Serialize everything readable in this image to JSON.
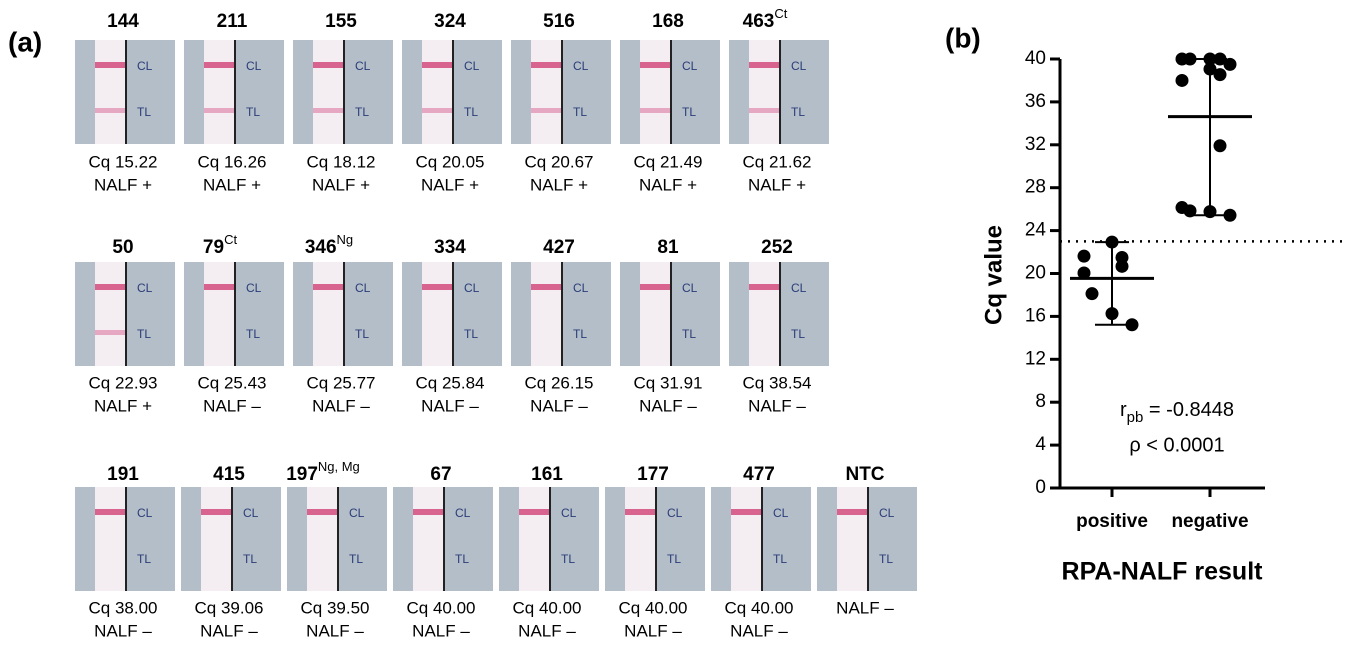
{
  "panel_a": {
    "label": "(a)",
    "control_label": "CL",
    "test_label": "TL",
    "rows": [
      [
        {
          "id": "144",
          "cq": "Cq 15.22",
          "result": "NALF +"
        },
        {
          "id": "211",
          "cq": "Cq 16.26",
          "result": "NALF +"
        },
        {
          "id": "155",
          "cq": "Cq 18.12",
          "result": "NALF +"
        },
        {
          "id": "324",
          "cq": "Cq 20.05",
          "result": "NALF +"
        },
        {
          "id": "516",
          "cq": "Cq 20.67",
          "result": "NALF +"
        },
        {
          "id": "168",
          "cq": "Cq 21.49",
          "result": "NALF +"
        },
        {
          "id": "463",
          "sup": "Ct",
          "cq": "Cq 21.62",
          "result": "NALF +"
        }
      ],
      [
        {
          "id": "50",
          "cq": "Cq 22.93",
          "result": "NALF +"
        },
        {
          "id": "79",
          "sup": "Ct",
          "cq": "Cq 25.43",
          "result": "NALF –"
        },
        {
          "id": "346",
          "sup": "Ng",
          "cq": "Cq 25.77",
          "result": "NALF –"
        },
        {
          "id": "334",
          "cq": "Cq 25.84",
          "result": "NALF –"
        },
        {
          "id": "427",
          "cq": "Cq 26.15",
          "result": "NALF –"
        },
        {
          "id": "81",
          "cq": "Cq 31.91",
          "result": "NALF –"
        },
        {
          "id": "252",
          "cq": "Cq 38.54",
          "result": "NALF –"
        }
      ],
      [
        {
          "id": "191",
          "cq": "Cq 38.00",
          "result": "NALF –"
        },
        {
          "id": "415",
          "cq": "Cq 39.06",
          "result": "NALF –"
        },
        {
          "id": "197",
          "sup": "Ng, Mg",
          "cq": "Cq 39.50",
          "result": "NALF –"
        },
        {
          "id": "67",
          "cq": "Cq 40.00",
          "result": "NALF –"
        },
        {
          "id": "161",
          "cq": "Cq 40.00",
          "result": "NALF –"
        },
        {
          "id": "177",
          "cq": "Cq 40.00",
          "result": "NALF –"
        },
        {
          "id": "477",
          "cq": "Cq 40.00",
          "result": "NALF –"
        },
        {
          "id": "NTC",
          "result": "NALF –"
        }
      ]
    ]
  },
  "chart_data": {
    "type": "dot",
    "label": "(b)",
    "y_label": "Cq value",
    "x_label": "RPA-NALF result",
    "categories": [
      "positive",
      "negative"
    ],
    "values": [
      [
        15.22,
        16.26,
        18.12,
        20.05,
        20.67,
        21.49,
        21.62,
        22.93
      ],
      [
        25.43,
        25.77,
        25.84,
        26.15,
        31.91,
        38.54,
        38.0,
        39.06,
        39.5,
        40,
        40,
        40,
        40
      ]
    ],
    "means": [
      19.55,
      34.63
    ],
    "ranges": [
      [
        15.22,
        22.93
      ],
      [
        25.43,
        40
      ]
    ],
    "threshold": 23,
    "ylim": [
      0,
      40
    ],
    "yticks": [
      0,
      4,
      8,
      12,
      16,
      20,
      24,
      28,
      32,
      36,
      40
    ],
    "annotations": {
      "r": "r",
      "r_sub": "pb",
      "r_text": " = -0.8448",
      "p": "ρ < 0.0001"
    },
    "color": "#000000"
  }
}
